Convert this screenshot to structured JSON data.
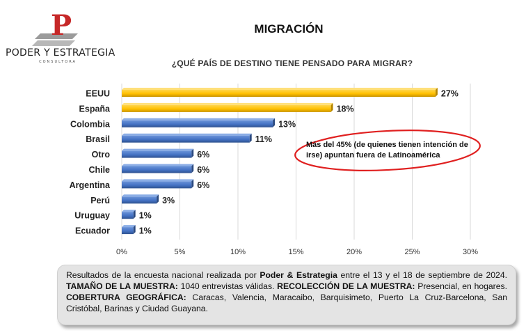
{
  "logo": {
    "name": "PODER Y ESTRATEGIA",
    "sub": "CONSULTORA",
    "mark": "P"
  },
  "title": "MIGRACIÓN",
  "subtitle": "¿QUÉ PAÍS DE DESTINO TIENE PENSADO PARA MIGRAR?",
  "note": "Más del 45%  (de quienes tienen intención de irse) apuntan fuera de Latinoamérica",
  "colors": {
    "highlight": "#FFC000",
    "default": "#4472C4",
    "ellipse": "#E02020"
  },
  "chart_data": {
    "type": "bar",
    "orientation": "horizontal",
    "title": "MIGRACIÓN",
    "subtitle": "¿QUÉ PAÍS DE DESTINO TIENE PENSADO PARA MIGRAR?",
    "categories": [
      "EEUU",
      "España",
      "Colombia",
      "Brasil",
      "Otro",
      "Chile",
      "Argentina",
      "Perú",
      "Uruguay",
      "Ecuador"
    ],
    "values": [
      27,
      18,
      13,
      11,
      6,
      6,
      6,
      3,
      1,
      1
    ],
    "value_labels": [
      "27%",
      "18%",
      "13%",
      "11%",
      "6%",
      "6%",
      "6%",
      "3%",
      "1%",
      "1%"
    ],
    "highlighted": [
      true,
      true,
      false,
      false,
      false,
      false,
      false,
      false,
      false,
      false
    ],
    "xlim": [
      0,
      30
    ],
    "ticks": [
      0,
      5,
      10,
      15,
      20,
      25,
      30
    ],
    "tick_labels": [
      "0%",
      "5%",
      "10%",
      "15%",
      "20%",
      "25%",
      "30%"
    ],
    "grid": true,
    "xlabel": "",
    "ylabel": ""
  },
  "footer": {
    "intro": "Resultados de la encuesta nacional realizada por ",
    "org": "Poder & Estrategia",
    "dates": " entre el 13 y el 18 de septiembre de 2024. ",
    "sample_label": "TAMAÑO DE LA MUESTRA:",
    "sample_value": " 1040  entrevistas válidas. ",
    "collection_label": "RECOLECCIÓN DE LA MUESTRA:",
    "collection_value": " Presencial, en hogares. ",
    "coverage_label": "COBERTURA GEOGRÁFICA:",
    "coverage_value": " Caracas, Valencia, Maracaibo, Barquisimeto, Puerto La Cruz-Barcelona, San Cristóbal, Barinas y Ciudad Guayana."
  }
}
